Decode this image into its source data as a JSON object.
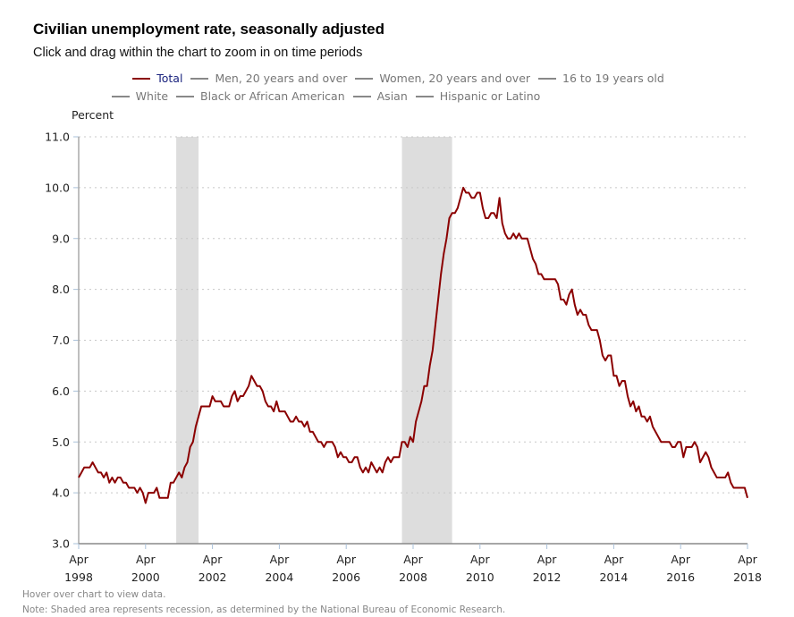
{
  "header": {
    "title": "Civilian unemployment rate, seasonally adjusted",
    "subtitle": "Click and drag within the chart to zoom in on time periods"
  },
  "legend": {
    "items": [
      {
        "label": "Total",
        "active": true,
        "color": "#8b0000"
      },
      {
        "label": "Men, 20 years and over",
        "active": false,
        "color": "#888888"
      },
      {
        "label": "Women, 20 years and over",
        "active": false,
        "color": "#888888"
      },
      {
        "label": "16 to 19 years old",
        "active": false,
        "color": "#888888"
      },
      {
        "label": "White",
        "active": false,
        "color": "#888888"
      },
      {
        "label": "Black or African American",
        "active": false,
        "color": "#888888"
      },
      {
        "label": "Asian",
        "active": false,
        "color": "#888888"
      },
      {
        "label": "Hispanic or Latino",
        "active": false,
        "color": "#888888"
      }
    ]
  },
  "footer": {
    "hover_note": "Hover over chart to view data.",
    "recession_note": "Note: Shaded area represents recession, as determined by the National Bureau of Economic Research."
  },
  "chart_data": {
    "type": "line",
    "title": "Civilian unemployment rate, seasonally adjusted",
    "xlabel": "",
    "ylabel": "Percent",
    "ylim": [
      3.0,
      11.0
    ],
    "yticks": [
      "3.0",
      "4.0",
      "5.0",
      "6.0",
      "7.0",
      "8.0",
      "9.0",
      "10.0",
      "11.0"
    ],
    "grid": true,
    "x_start": "1998-04",
    "x_end": "2018-04",
    "xticks": [
      {
        "month": "Apr",
        "year": "1998",
        "index": 0
      },
      {
        "month": "Apr",
        "year": "2000",
        "index": 24
      },
      {
        "month": "Apr",
        "year": "2002",
        "index": 48
      },
      {
        "month": "Apr",
        "year": "2004",
        "index": 72
      },
      {
        "month": "Apr",
        "year": "2006",
        "index": 96
      },
      {
        "month": "Apr",
        "year": "2008",
        "index": 120
      },
      {
        "month": "Apr",
        "year": "2010",
        "index": 144
      },
      {
        "month": "Apr",
        "year": "2012",
        "index": 168
      },
      {
        "month": "Apr",
        "year": "2014",
        "index": 192
      },
      {
        "month": "Apr",
        "year": "2016",
        "index": 216
      },
      {
        "month": "Apr",
        "year": "2018",
        "index": 240
      }
    ],
    "recessions": [
      {
        "start": "2001-03",
        "end": "2001-11",
        "start_index": 35,
        "end_index": 43
      },
      {
        "start": "2007-12",
        "end": "2009-06",
        "start_index": 116,
        "end_index": 134
      }
    ],
    "series": [
      {
        "name": "Total",
        "color": "#8b0000",
        "frequency": "monthly",
        "values": [
          4.3,
          4.4,
          4.5,
          4.5,
          4.5,
          4.6,
          4.5,
          4.4,
          4.4,
          4.3,
          4.4,
          4.2,
          4.3,
          4.2,
          4.3,
          4.3,
          4.2,
          4.2,
          4.1,
          4.1,
          4.1,
          4.0,
          4.1,
          4.0,
          3.8,
          4.0,
          4.0,
          4.0,
          4.1,
          3.9,
          3.9,
          3.9,
          3.9,
          4.2,
          4.2,
          4.3,
          4.4,
          4.3,
          4.5,
          4.6,
          4.9,
          5.0,
          5.3,
          5.5,
          5.7,
          5.7,
          5.7,
          5.7,
          5.9,
          5.8,
          5.8,
          5.8,
          5.7,
          5.7,
          5.7,
          5.9,
          6.0,
          5.8,
          5.9,
          5.9,
          6.0,
          6.1,
          6.3,
          6.2,
          6.1,
          6.1,
          6.0,
          5.8,
          5.7,
          5.7,
          5.6,
          5.8,
          5.6,
          5.6,
          5.6,
          5.5,
          5.4,
          5.4,
          5.5,
          5.4,
          5.4,
          5.3,
          5.4,
          5.2,
          5.2,
          5.1,
          5.0,
          5.0,
          4.9,
          5.0,
          5.0,
          5.0,
          4.9,
          4.7,
          4.8,
          4.7,
          4.7,
          4.6,
          4.6,
          4.7,
          4.7,
          4.5,
          4.4,
          4.5,
          4.4,
          4.6,
          4.5,
          4.4,
          4.5,
          4.4,
          4.6,
          4.7,
          4.6,
          4.7,
          4.7,
          4.7,
          5.0,
          5.0,
          4.9,
          5.1,
          5.0,
          5.4,
          5.6,
          5.8,
          6.1,
          6.1,
          6.5,
          6.8,
          7.3,
          7.8,
          8.3,
          8.7,
          9.0,
          9.4,
          9.5,
          9.5,
          9.6,
          9.8,
          10.0,
          9.9,
          9.9,
          9.8,
          9.8,
          9.9,
          9.9,
          9.6,
          9.4,
          9.4,
          9.5,
          9.5,
          9.4,
          9.8,
          9.3,
          9.1,
          9.0,
          9.0,
          9.1,
          9.0,
          9.1,
          9.0,
          9.0,
          9.0,
          8.8,
          8.6,
          8.5,
          8.3,
          8.3,
          8.2,
          8.2,
          8.2,
          8.2,
          8.2,
          8.1,
          7.8,
          7.8,
          7.7,
          7.9,
          8.0,
          7.7,
          7.5,
          7.6,
          7.5,
          7.5,
          7.3,
          7.2,
          7.2,
          7.2,
          7.0,
          6.7,
          6.6,
          6.7,
          6.7,
          6.3,
          6.3,
          6.1,
          6.2,
          6.2,
          5.9,
          5.7,
          5.8,
          5.6,
          5.7,
          5.5,
          5.5,
          5.4,
          5.5,
          5.3,
          5.2,
          5.1,
          5.0,
          5.0,
          5.0,
          5.0,
          4.9,
          4.9,
          5.0,
          5.0,
          4.7,
          4.9,
          4.9,
          4.9,
          5.0,
          4.9,
          4.6,
          4.7,
          4.8,
          4.7,
          4.5,
          4.4,
          4.3,
          4.3,
          4.3,
          4.3,
          4.4,
          4.2,
          4.1,
          4.1,
          4.1,
          4.1,
          4.1,
          3.9
        ]
      }
    ]
  }
}
